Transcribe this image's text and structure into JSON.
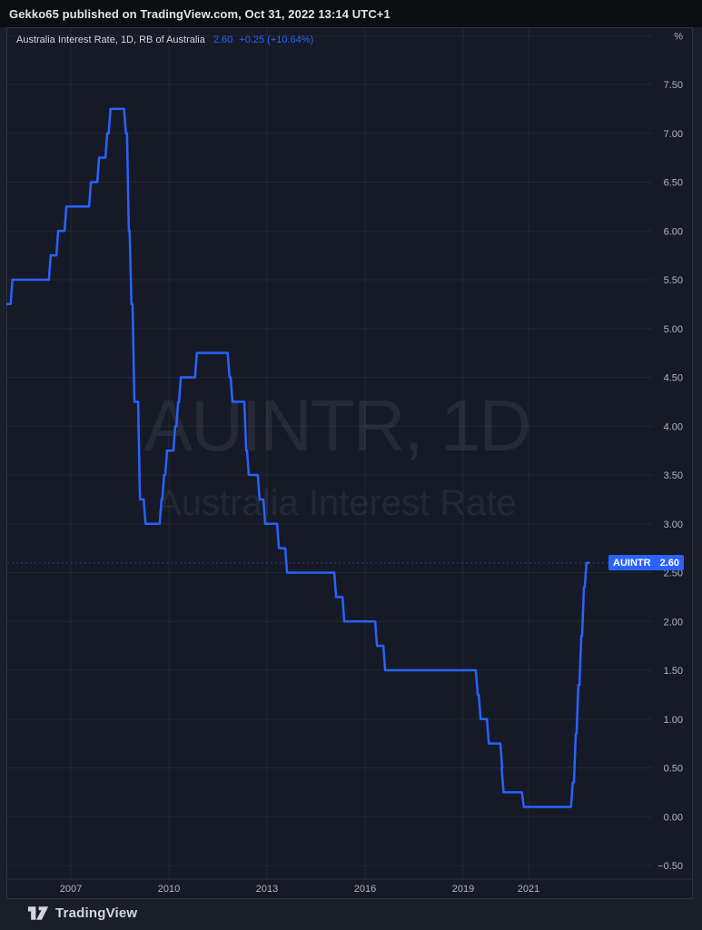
{
  "header": {
    "attribution": "Gekko65 published on TradingView.com, Oct 31, 2022 13:14 UTC+1"
  },
  "legend": {
    "title": "Australia Interest Rate, 1D, RB of Australia",
    "price": "2.60",
    "change": "+0.25 (+10.64%)"
  },
  "watermark": {
    "line1": "AUINTR, 1D",
    "line2": "Australia Interest Rate"
  },
  "price_label": {
    "symbol": "AUINTR",
    "value": "2.60"
  },
  "footer": {
    "brand": "TradingView"
  },
  "colors": {
    "accent": "#2962ff",
    "chart_background": "#151a26",
    "axis_text": "#b2b5be",
    "gridline": "rgba(255,255,255,0.06)",
    "separator": "#2e3340"
  },
  "chart_data": {
    "type": "line",
    "symbol": "AUINTR",
    "timeframe": "1D",
    "title": "Australia Interest Rate",
    "source": "RB of Australia",
    "unit": "%",
    "last_value": 2.6,
    "change_abs": "+0.25",
    "change_pct": "+10.64%",
    "current_price_line": 2.6,
    "y_axis": {
      "min": -0.5,
      "max": 8.0,
      "tick_step": 0.5,
      "ticks": [
        {
          "v": 8.0,
          "label": "%"
        },
        {
          "v": 7.5,
          "label": "7.50"
        },
        {
          "v": 7.0,
          "label": "7.00"
        },
        {
          "v": 6.5,
          "label": "6.50"
        },
        {
          "v": 6.0,
          "label": "6.00"
        },
        {
          "v": 5.5,
          "label": "5.50"
        },
        {
          "v": 5.0,
          "label": "5.00"
        },
        {
          "v": 4.5,
          "label": "4.50"
        },
        {
          "v": 4.0,
          "label": "4.00"
        },
        {
          "v": 3.5,
          "label": "3.50"
        },
        {
          "v": 3.0,
          "label": "3.00"
        },
        {
          "v": 2.5,
          "label": "2.50"
        },
        {
          "v": 2.0,
          "label": "2.00"
        },
        {
          "v": 1.5,
          "label": "1.50"
        },
        {
          "v": 1.0,
          "label": "1.00"
        },
        {
          "v": 0.5,
          "label": "0.50"
        },
        {
          "v": 0.0,
          "label": "0.00"
        },
        {
          "v": -0.5,
          "label": "−0.50"
        }
      ]
    },
    "x_axis": {
      "ticks": [
        {
          "year": 2007,
          "label": "2007"
        },
        {
          "year": 2010,
          "label": "2010"
        },
        {
          "year": 2013,
          "label": "2013"
        },
        {
          "year": 2016,
          "label": "2016"
        },
        {
          "year": 2019,
          "label": "2019"
        },
        {
          "year": 2021,
          "label": "2021"
        }
      ]
    },
    "series": [
      {
        "name": "Australia Interest Rate",
        "color": "#2962ff",
        "end_year": 2022.84,
        "rate_changes": [
          [
            2004.8,
            5.25
          ],
          [
            2005.2,
            5.5
          ],
          [
            2006.37,
            5.75
          ],
          [
            2006.6,
            6.0
          ],
          [
            2006.85,
            6.25
          ],
          [
            2007.6,
            6.5
          ],
          [
            2007.85,
            6.75
          ],
          [
            2008.1,
            7.0
          ],
          [
            2008.2,
            7.25
          ],
          [
            2008.67,
            7.0
          ],
          [
            2008.76,
            6.0
          ],
          [
            2008.84,
            5.25
          ],
          [
            2008.93,
            4.25
          ],
          [
            2009.1,
            3.25
          ],
          [
            2009.27,
            3.0
          ],
          [
            2009.76,
            3.25
          ],
          [
            2009.84,
            3.5
          ],
          [
            2009.93,
            3.75
          ],
          [
            2010.18,
            4.0
          ],
          [
            2010.27,
            4.25
          ],
          [
            2010.35,
            4.5
          ],
          [
            2010.84,
            4.75
          ],
          [
            2011.84,
            4.5
          ],
          [
            2011.93,
            4.25
          ],
          [
            2012.35,
            3.75
          ],
          [
            2012.43,
            3.5
          ],
          [
            2012.76,
            3.25
          ],
          [
            2012.93,
            3.0
          ],
          [
            2013.35,
            2.75
          ],
          [
            2013.6,
            2.5
          ],
          [
            2015.1,
            2.25
          ],
          [
            2015.35,
            2.0
          ],
          [
            2016.35,
            1.75
          ],
          [
            2016.6,
            1.5
          ],
          [
            2019.43,
            1.25
          ],
          [
            2019.52,
            1.0
          ],
          [
            2019.77,
            0.75
          ],
          [
            2020.18,
            0.5
          ],
          [
            2020.22,
            0.25
          ],
          [
            2020.84,
            0.1
          ],
          [
            2022.34,
            0.35
          ],
          [
            2022.43,
            0.85
          ],
          [
            2022.51,
            1.35
          ],
          [
            2022.6,
            1.85
          ],
          [
            2022.68,
            2.35
          ],
          [
            2022.76,
            2.6
          ]
        ]
      }
    ]
  }
}
